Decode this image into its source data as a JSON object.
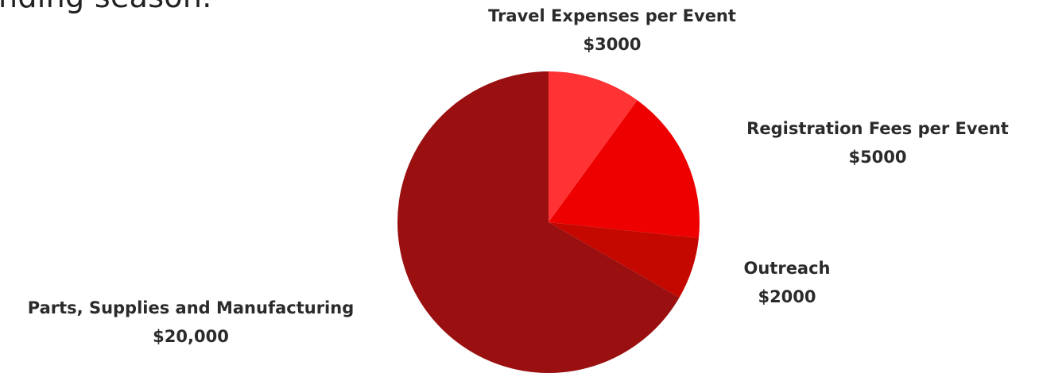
{
  "intro_text": "nding season.",
  "chart_data": {
    "type": "pie",
    "slices": [
      {
        "label": "Travel Expenses per Event",
        "value_label": "$3000",
        "value": 3000,
        "color": "#ff3333"
      },
      {
        "label": "Registration Fees per Event",
        "value_label": "$5000",
        "value": 5000,
        "color": "#ee0000"
      },
      {
        "label": "Outreach",
        "value_label": "$2000",
        "value": 2000,
        "color": "#c40800"
      },
      {
        "label": "Parts, Supplies and Manufacturing",
        "value_label": "$20,000",
        "value": 20000,
        "color": "#9a0f0f"
      }
    ]
  }
}
